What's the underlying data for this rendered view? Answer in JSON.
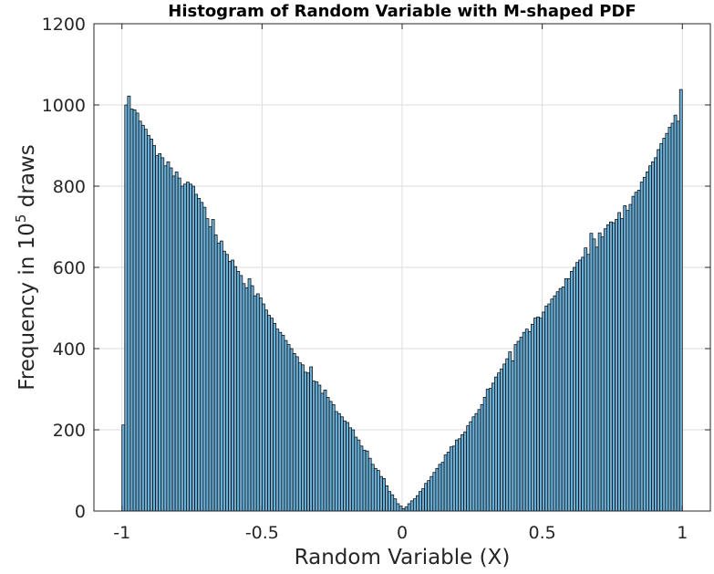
{
  "chart_data": {
    "type": "bar",
    "title": "Histogram of Random Variable with M-shaped PDF",
    "xlabel": "Random Variable (X)",
    "ylabel": {
      "prefix": "Frequency in 10",
      "superscript": "5",
      "suffix": " draws"
    },
    "xlim": [
      -1.1,
      1.1
    ],
    "ylim": [
      0,
      1200
    ],
    "xticks": [
      {
        "value": -1,
        "label": "-1"
      },
      {
        "value": -0.5,
        "label": "-0.5"
      },
      {
        "value": 0,
        "label": "0"
      },
      {
        "value": 0.5,
        "label": "0.5"
      },
      {
        "value": 1,
        "label": "1"
      }
    ],
    "yticks": [
      {
        "value": 0,
        "label": "0"
      },
      {
        "value": 200,
        "label": "200"
      },
      {
        "value": 400,
        "label": "400"
      },
      {
        "value": 600,
        "label": "600"
      },
      {
        "value": 800,
        "label": "800"
      },
      {
        "value": 1000,
        "label": "1000"
      },
      {
        "value": 1200,
        "label": "1200"
      }
    ],
    "grid": true,
    "bin_range": [
      -1,
      1
    ],
    "bin_count": 200,
    "values": [
      212,
      1000,
      1022,
      990,
      988,
      980,
      960,
      950,
      940,
      925,
      916,
      900,
      875,
      880,
      870,
      850,
      860,
      845,
      825,
      835,
      820,
      800,
      805,
      810,
      805,
      800,
      780,
      770,
      760,
      748,
      720,
      700,
      718,
      680,
      660,
      665,
      640,
      632,
      615,
      618,
      602,
      590,
      580,
      560,
      550,
      572,
      555,
      530,
      535,
      525,
      510,
      495,
      482,
      475,
      462,
      448,
      440,
      433,
      420,
      410,
      400,
      388,
      380,
      365,
      360,
      342,
      340,
      355,
      320,
      318,
      310,
      290,
      298,
      280,
      270,
      262,
      245,
      240,
      232,
      222,
      218,
      205,
      200,
      182,
      175,
      160,
      150,
      148,
      130,
      115,
      105,
      100,
      85,
      80,
      62,
      48,
      40,
      30,
      18,
      12,
      6,
      10,
      18,
      25,
      30,
      38,
      48,
      55,
      68,
      75,
      85,
      95,
      105,
      115,
      120,
      138,
      145,
      158,
      160,
      175,
      178,
      188,
      195,
      210,
      220,
      232,
      240,
      250,
      262,
      280,
      300,
      302,
      315,
      330,
      340,
      350,
      362,
      375,
      392,
      370,
      410,
      418,
      428,
      440,
      448,
      442,
      460,
      475,
      478,
      475,
      490,
      505,
      510,
      522,
      530,
      540,
      548,
      552,
      572,
      572,
      590,
      600,
      612,
      618,
      625,
      648,
      632,
      684,
      670,
      650,
      685,
      675,
      695,
      705,
      712,
      710,
      718,
      735,
      720,
      752,
      740,
      755,
      775,
      785,
      790,
      810,
      822,
      835,
      850,
      860,
      870,
      890,
      905,
      918,
      930,
      945,
      955,
      975,
      960,
      1038
    ],
    "bar_color": "#6baed6",
    "edge_color": "#000000"
  }
}
